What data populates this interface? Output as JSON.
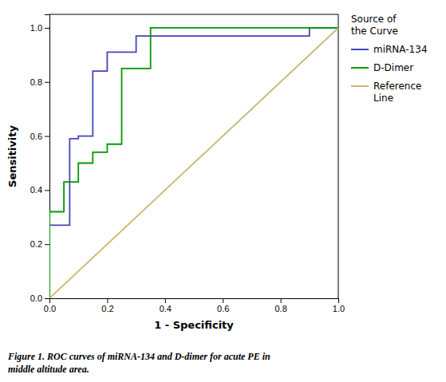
{
  "chart_data": {
    "type": "line",
    "xlabel": "1 - Specificity",
    "ylabel": "Sensitivity",
    "legend_title": "Source of\nthe Curve",
    "legend": "right",
    "grid": false,
    "xlim": [
      0.0,
      1.0
    ],
    "ylim": [
      0.0,
      1.05
    ],
    "xticks": [
      {
        "value": 0,
        "label": "0.0"
      },
      0.2,
      0.4,
      0.6,
      0.8,
      {
        "value": 1,
        "label": "1.0"
      }
    ],
    "yticks": [
      {
        "value": 0,
        "label": "0.0"
      },
      0.2,
      0.4,
      0.6,
      0.8,
      {
        "value": 1,
        "label": "1.0"
      }
    ],
    "series": [
      {
        "name": "miRNA-134",
        "color": "#4444bb",
        "x": [
          0.0,
          0.0,
          0.07,
          0.07,
          0.1,
          0.1,
          0.15,
          0.15,
          0.2,
          0.2,
          0.3,
          0.3,
          0.9,
          0.9,
          1.0
        ],
        "values": [
          0.0,
          0.27,
          0.27,
          0.59,
          0.59,
          0.6,
          0.6,
          0.84,
          0.84,
          0.91,
          0.91,
          0.97,
          0.97,
          1.0,
          1.0
        ]
      },
      {
        "name": "D-Dimer",
        "color": "#009900",
        "x": [
          0.0,
          0.0,
          0.05,
          0.05,
          0.1,
          0.1,
          0.15,
          0.15,
          0.2,
          0.2,
          0.25,
          0.25,
          0.35,
          0.35,
          1.0
        ],
        "values": [
          0.0,
          0.32,
          0.32,
          0.43,
          0.43,
          0.5,
          0.5,
          0.54,
          0.54,
          0.57,
          0.57,
          0.85,
          0.85,
          1.0,
          1.0
        ]
      },
      {
        "name": "Reference\nLine",
        "color": "#c8b870",
        "x": [
          0.0,
          1.0
        ],
        "values": [
          0.0,
          1.0
        ]
      }
    ],
    "annotations": [
      "Figure 1. ROC curves of miRNA-134 and D-dimer for acute PE in",
      "middle altitude area."
    ]
  }
}
